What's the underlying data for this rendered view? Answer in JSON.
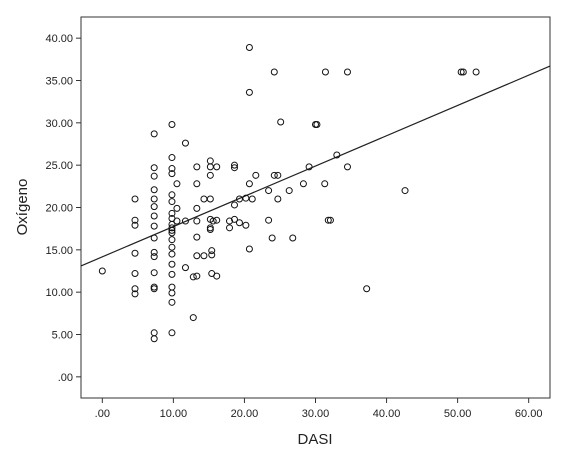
{
  "chart_data": {
    "type": "scatter",
    "title": "",
    "xlabel": "DASI",
    "ylabel": "Oxígeno",
    "xlim": [
      -3,
      63
    ],
    "ylim": [
      -2.5,
      42.5
    ],
    "x_ticks": [
      0,
      10,
      20,
      30,
      40,
      50,
      60
    ],
    "x_tick_labels": [
      ".00",
      "10.00",
      "20.00",
      "30.00",
      "40.00",
      "50.00",
      "60.00"
    ],
    "y_ticks": [
      0,
      5,
      10,
      15,
      20,
      25,
      30,
      35,
      40
    ],
    "y_tick_labels": [
      ".00",
      "5.00",
      "10.00",
      "15.00",
      "20.00",
      "25.00",
      "30.00",
      "35.00",
      "40.00"
    ],
    "grid": false,
    "legend": "none",
    "fit_line": {
      "x": [
        -3,
        63
      ],
      "y": [
        13.1,
        36.7
      ]
    },
    "points": [
      [
        0.0,
        12.5
      ],
      [
        4.6,
        10.4
      ],
      [
        4.6,
        9.8
      ],
      [
        4.6,
        12.2
      ],
      [
        4.6,
        14.6
      ],
      [
        4.6,
        17.9
      ],
      [
        4.6,
        18.5
      ],
      [
        4.6,
        21.0
      ],
      [
        7.3,
        4.5
      ],
      [
        7.3,
        5.2
      ],
      [
        7.3,
        10.4
      ],
      [
        7.3,
        10.6
      ],
      [
        7.3,
        12.3
      ],
      [
        7.3,
        14.2
      ],
      [
        7.3,
        14.7
      ],
      [
        7.3,
        16.4
      ],
      [
        7.3,
        19.0
      ],
      [
        7.3,
        20.1
      ],
      [
        7.3,
        21.0
      ],
      [
        7.3,
        22.1
      ],
      [
        7.3,
        23.7
      ],
      [
        7.3,
        24.7
      ],
      [
        7.3,
        28.7
      ],
      [
        7.3,
        17.8
      ],
      [
        9.8,
        5.2
      ],
      [
        9.8,
        8.8
      ],
      [
        9.8,
        9.9
      ],
      [
        9.8,
        10.6
      ],
      [
        9.8,
        12.1
      ],
      [
        9.8,
        13.3
      ],
      [
        9.8,
        14.5
      ],
      [
        9.8,
        15.3
      ],
      [
        9.8,
        16.2
      ],
      [
        9.8,
        17.0
      ],
      [
        9.8,
        17.6
      ],
      [
        9.8,
        18.0
      ],
      [
        9.8,
        18.7
      ],
      [
        9.8,
        19.3
      ],
      [
        9.8,
        20.7
      ],
      [
        9.8,
        21.5
      ],
      [
        9.8,
        24.0
      ],
      [
        9.8,
        24.6
      ],
      [
        9.8,
        25.9
      ],
      [
        9.8,
        29.8
      ],
      [
        9.8,
        17.3
      ],
      [
        10.5,
        19.9
      ],
      [
        10.5,
        18.4
      ],
      [
        10.5,
        22.8
      ],
      [
        11.7,
        12.9
      ],
      [
        11.7,
        18.4
      ],
      [
        11.7,
        27.6
      ],
      [
        12.8,
        7.0
      ],
      [
        12.8,
        11.8
      ],
      [
        13.3,
        11.9
      ],
      [
        13.3,
        14.3
      ],
      [
        13.3,
        16.5
      ],
      [
        13.3,
        18.4
      ],
      [
        13.3,
        19.9
      ],
      [
        13.3,
        22.8
      ],
      [
        13.3,
        24.8
      ],
      [
        14.3,
        14.3
      ],
      [
        14.3,
        21.0
      ],
      [
        15.2,
        21.0
      ],
      [
        15.2,
        24.8
      ],
      [
        15.2,
        25.5
      ],
      [
        15.2,
        23.8
      ],
      [
        15.2,
        17.6
      ],
      [
        15.2,
        18.6
      ],
      [
        15.2,
        17.4
      ],
      [
        15.4,
        12.2
      ],
      [
        15.4,
        14.4
      ],
      [
        15.4,
        14.9
      ],
      [
        15.6,
        18.4
      ],
      [
        16.1,
        11.9
      ],
      [
        16.1,
        24.8
      ],
      [
        16.1,
        18.5
      ],
      [
        17.9,
        17.6
      ],
      [
        17.9,
        18.4
      ],
      [
        18.6,
        25.0
      ],
      [
        18.6,
        24.7
      ],
      [
        18.6,
        20.3
      ],
      [
        18.6,
        18.6
      ],
      [
        19.3,
        21.0
      ],
      [
        19.3,
        18.2
      ],
      [
        20.2,
        17.9
      ],
      [
        20.2,
        21.1
      ],
      [
        20.7,
        15.1
      ],
      [
        20.7,
        22.8
      ],
      [
        20.7,
        33.6
      ],
      [
        20.7,
        38.9
      ],
      [
        21.1,
        21.0
      ],
      [
        21.6,
        23.8
      ],
      [
        23.4,
        18.5
      ],
      [
        23.4,
        22.0
      ],
      [
        23.9,
        16.4
      ],
      [
        24.2,
        23.8
      ],
      [
        24.2,
        36.0
      ],
      [
        24.7,
        21.0
      ],
      [
        24.7,
        23.8
      ],
      [
        25.1,
        30.1
      ],
      [
        26.3,
        22.0
      ],
      [
        26.8,
        16.4
      ],
      [
        28.3,
        22.8
      ],
      [
        29.1,
        24.8
      ],
      [
        30.0,
        29.8
      ],
      [
        30.2,
        29.8
      ],
      [
        31.3,
        22.8
      ],
      [
        31.4,
        36.0
      ],
      [
        31.8,
        18.5
      ],
      [
        32.1,
        18.5
      ],
      [
        33.0,
        26.2
      ],
      [
        34.5,
        24.8
      ],
      [
        34.5,
        36.0
      ],
      [
        37.2,
        10.4
      ],
      [
        42.6,
        22.0
      ],
      [
        50.5,
        36.0
      ],
      [
        50.8,
        36.0
      ],
      [
        52.6,
        36.0
      ]
    ]
  }
}
